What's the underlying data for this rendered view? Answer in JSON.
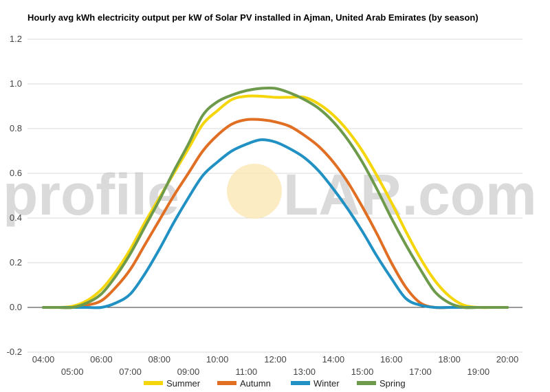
{
  "chart_data": {
    "type": "line",
    "title": "Hourly avg kWh electricity output per kW of Solar PV installed in Ajman, United Arab Emirates (by season)",
    "xlabel": "",
    "ylabel": "",
    "ylim": [
      -0.2,
      1.2
    ],
    "yticks": [
      "-0.2",
      "0.0",
      "0.2",
      "0.4",
      "0.6",
      "0.8",
      "1.0",
      "1.2"
    ],
    "x_upper_ticks": [
      "04:00",
      "06:00",
      "08:00",
      "10:00",
      "12:00",
      "14:00",
      "16:00",
      "18:00",
      "20:00"
    ],
    "x_lower_ticks": [
      "05:00",
      "07:00",
      "09:00",
      "11:00",
      "13:00",
      "15:00",
      "17:00",
      "19:00"
    ],
    "x": [
      "04:00",
      "04:30",
      "05:00",
      "05:30",
      "06:00",
      "06:30",
      "07:00",
      "07:30",
      "08:00",
      "08:30",
      "09:00",
      "09:30",
      "10:00",
      "10:30",
      "11:00",
      "11:30",
      "12:00",
      "12:30",
      "13:00",
      "13:30",
      "14:00",
      "14:30",
      "15:00",
      "15:30",
      "16:00",
      "16:30",
      "17:00",
      "17:30",
      "18:00",
      "18:30",
      "19:00",
      "19:30",
      "20:00"
    ],
    "grid": true,
    "legend_position": "bottom",
    "series": [
      {
        "name": "Summer",
        "color": "#f5d60a",
        "values": [
          0.0,
          0.0,
          0.005,
          0.03,
          0.08,
          0.16,
          0.26,
          0.38,
          0.49,
          0.6,
          0.71,
          0.82,
          0.88,
          0.93,
          0.945,
          0.945,
          0.94,
          0.94,
          0.94,
          0.91,
          0.86,
          0.79,
          0.7,
          0.59,
          0.47,
          0.34,
          0.22,
          0.12,
          0.05,
          0.01,
          0.0,
          0.0,
          0.0
        ]
      },
      {
        "name": "Autumn",
        "color": "#e06f23",
        "values": [
          0.0,
          0.0,
          0.0,
          0.01,
          0.03,
          0.09,
          0.17,
          0.28,
          0.39,
          0.5,
          0.6,
          0.7,
          0.77,
          0.82,
          0.84,
          0.84,
          0.83,
          0.81,
          0.77,
          0.72,
          0.65,
          0.56,
          0.45,
          0.33,
          0.2,
          0.09,
          0.02,
          0.0,
          0.0,
          0.0,
          0.0,
          0.0,
          0.0
        ]
      },
      {
        "name": "Winter",
        "color": "#2191c4",
        "values": [
          0.0,
          0.0,
          0.0,
          0.0,
          0.0,
          0.02,
          0.06,
          0.15,
          0.26,
          0.38,
          0.49,
          0.59,
          0.65,
          0.7,
          0.73,
          0.75,
          0.74,
          0.71,
          0.67,
          0.61,
          0.53,
          0.44,
          0.34,
          0.23,
          0.13,
          0.04,
          0.01,
          0.0,
          0.0,
          0.0,
          0.0,
          0.0,
          0.0
        ]
      },
      {
        "name": "Spring",
        "color": "#6e9b4b",
        "values": [
          0.0,
          0.0,
          0.0,
          0.02,
          0.06,
          0.14,
          0.24,
          0.36,
          0.48,
          0.61,
          0.73,
          0.86,
          0.92,
          0.95,
          0.97,
          0.98,
          0.98,
          0.96,
          0.93,
          0.89,
          0.83,
          0.75,
          0.65,
          0.53,
          0.4,
          0.28,
          0.17,
          0.07,
          0.02,
          0.0,
          0.0,
          0.0,
          0.0
        ]
      }
    ]
  },
  "watermark": {
    "left_text": "profile",
    "right_text": "LAR.com",
    "sun_color": "#fbe7b5"
  }
}
